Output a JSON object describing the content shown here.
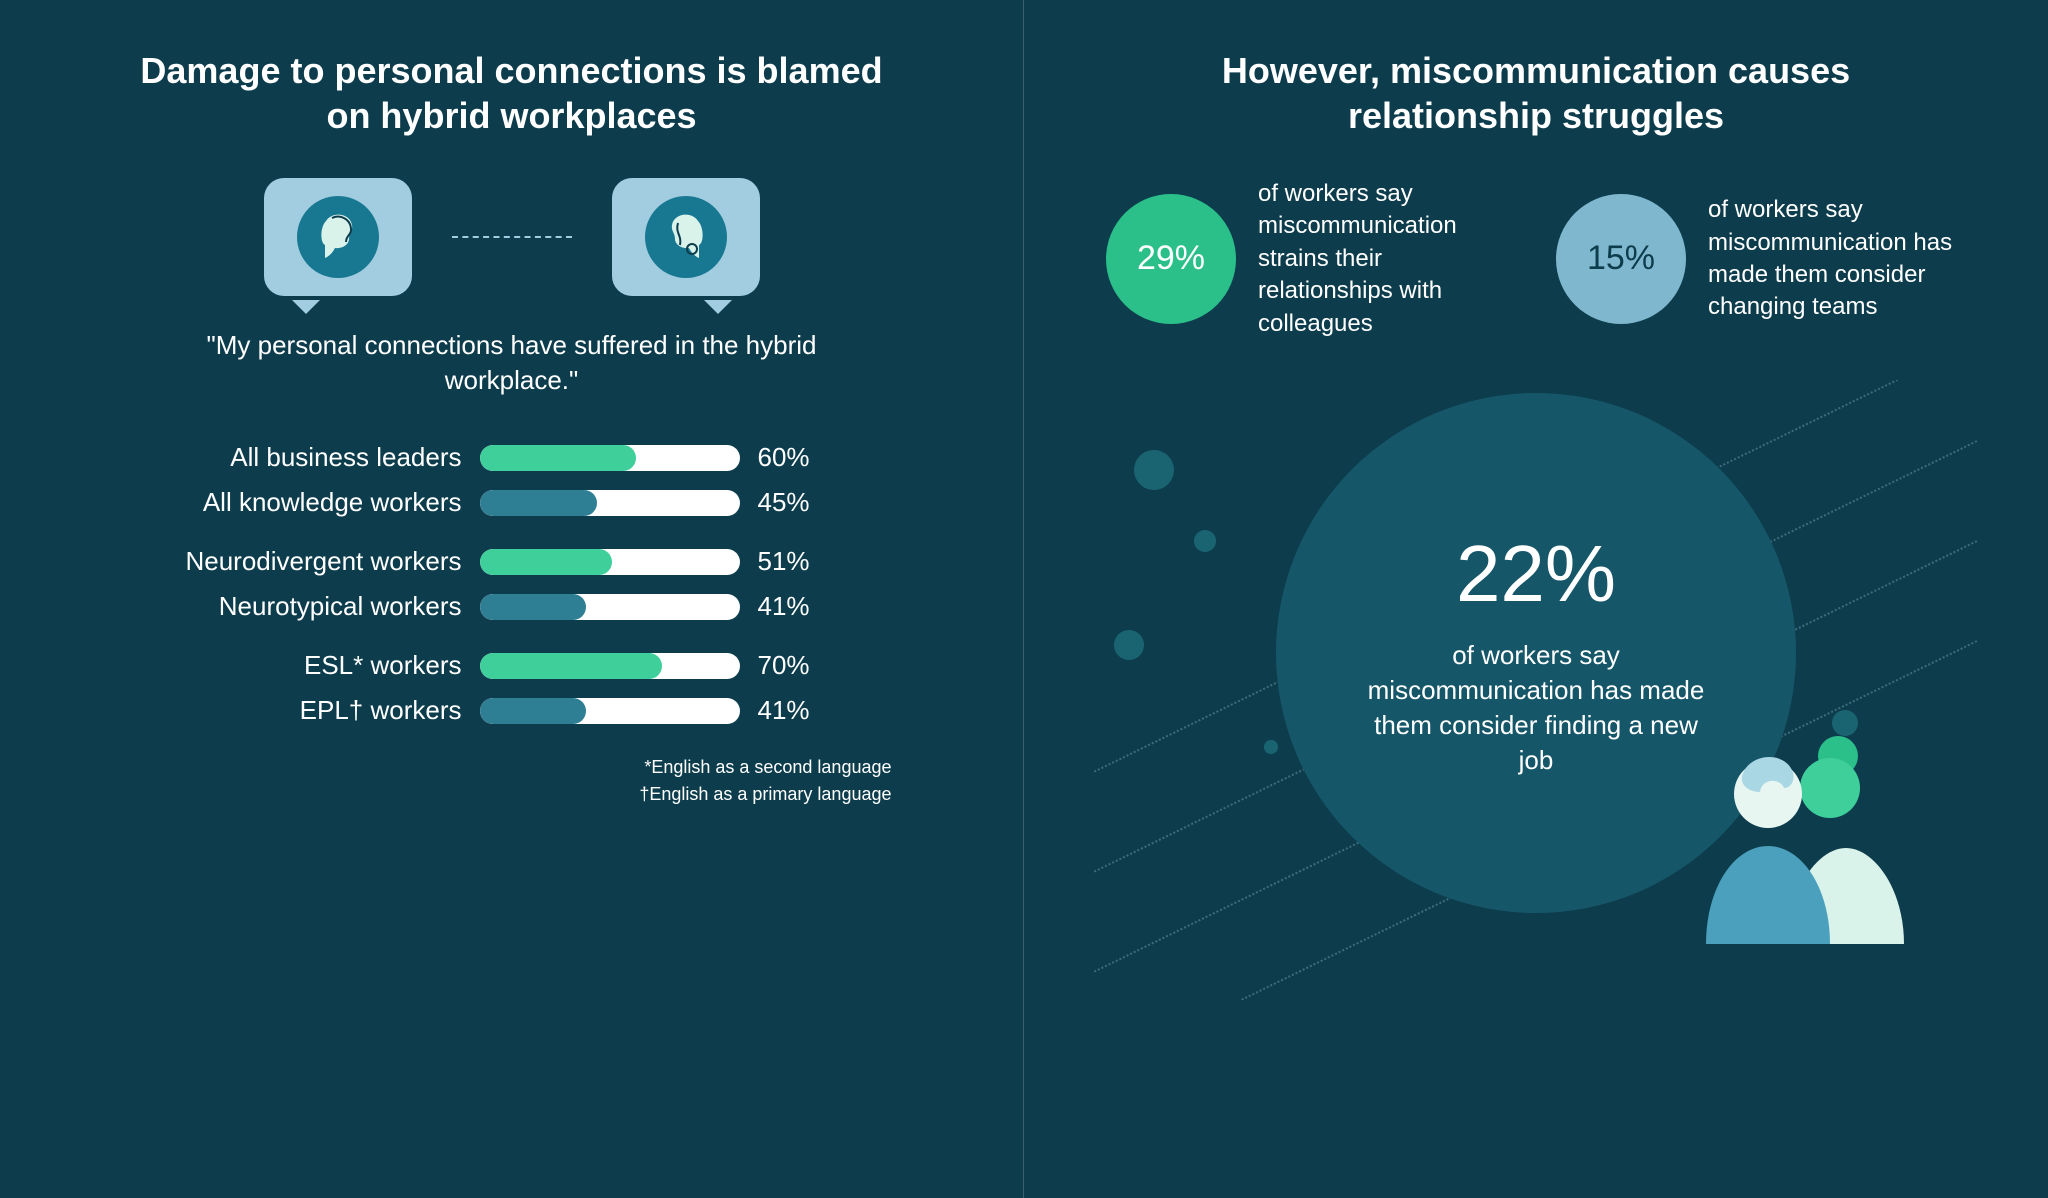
{
  "colors": {
    "bg": "#0d3d4d",
    "title_text": "#ffffff",
    "bubble_bg": "#a2cde0",
    "avatar_bg": "#187891",
    "bar_track": "#ffffff",
    "bar_green": "#3fcf9b",
    "bar_teal": "#2e7e94",
    "stat_green": "#2bbf8a",
    "stat_blue": "#7fb8ce",
    "big_circle": "#155669",
    "big_circle_text": "#ffffff",
    "dotted": "rgba(150,200,210,0.35)"
  },
  "left": {
    "title": "Damage to personal connections is blamed on hybrid workplaces",
    "quote": "\"My personal connections have suffered in the hybrid workplace.\"",
    "bars": {
      "max_pct": 100,
      "groups": [
        [
          {
            "label": "All business leaders",
            "pct": 60,
            "color": "#3fcf9b"
          },
          {
            "label": "All knowledge workers",
            "pct": 45,
            "color": "#2e7e94"
          }
        ],
        [
          {
            "label": "Neurodivergent workers",
            "pct": 51,
            "color": "#3fcf9b"
          },
          {
            "label": "Neurotypical workers",
            "pct": 41,
            "color": "#2e7e94"
          }
        ],
        [
          {
            "label": "ESL* workers",
            "pct": 70,
            "color": "#3fcf9b"
          },
          {
            "label": "EPL† workers",
            "pct": 41,
            "color": "#2e7e94"
          }
        ]
      ]
    },
    "footnotes": [
      "*English as a second language",
      "†English as a primary language"
    ]
  },
  "right": {
    "title": "However, miscommunication causes relationship struggles",
    "stats": [
      {
        "pct": "29%",
        "text": "of workers say miscommunication strains their relationships with colleagues",
        "color": "#2bbf8a"
      },
      {
        "pct": "15%",
        "text": "of workers say miscommunication has made them consider changing teams",
        "color": "#7fb8ce"
      }
    ],
    "big": {
      "pct": "22%",
      "text": "of workers say miscommunication has made them consider finding a new job",
      "bg": "#155669"
    }
  }
}
